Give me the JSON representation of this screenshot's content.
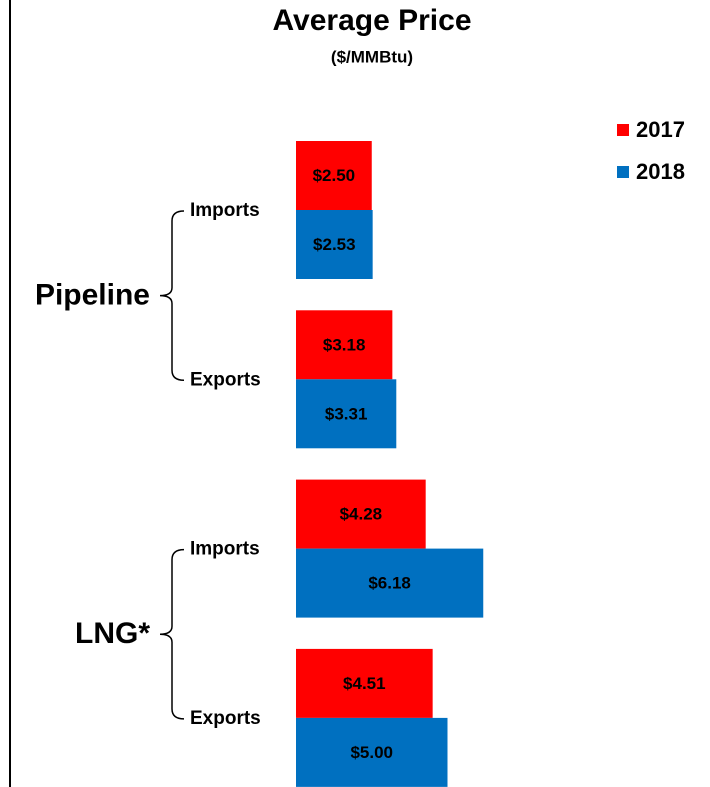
{
  "chart_data": {
    "type": "bar",
    "orientation": "horizontal",
    "title": "Average Price",
    "subtitle": "($/MMBtu)",
    "groups": [
      "Pipeline",
      "LNG*"
    ],
    "categories": [
      "Imports",
      "Exports",
      "Imports",
      "Exports"
    ],
    "series": [
      {
        "name": "2017",
        "color": "#ff0000",
        "values": [
          2.5,
          3.18,
          4.28,
          4.51
        ],
        "value_labels": [
          "$2.50",
          "$3.18",
          "$4.28",
          "$4.51"
        ]
      },
      {
        "name": "2018",
        "color": "#0070c0",
        "values": [
          2.53,
          3.31,
          6.18,
          5.0
        ],
        "value_labels": [
          "$2.53",
          "$3.31",
          "$6.18",
          "$5.00"
        ]
      }
    ],
    "legend": "top-right"
  }
}
